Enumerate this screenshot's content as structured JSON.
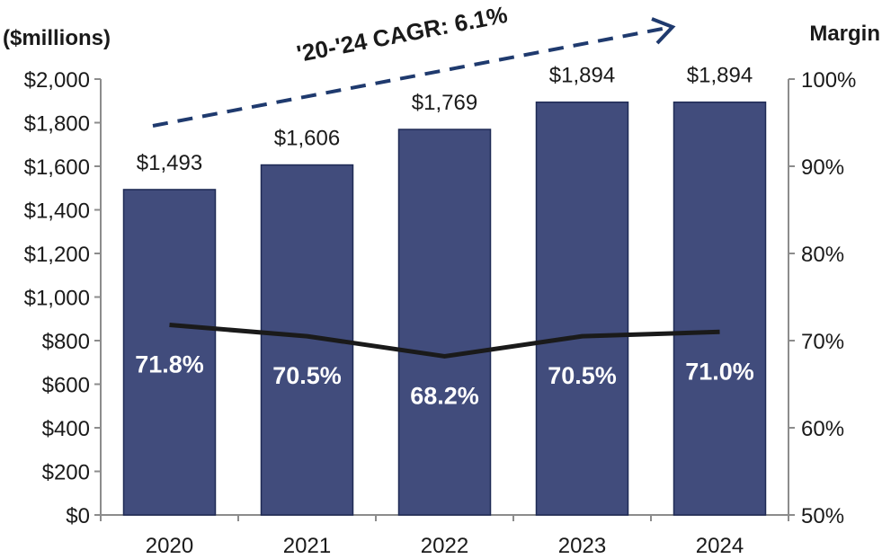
{
  "chart_data": {
    "type": "bar",
    "left_axis_title": "($millions)",
    "right_axis_title": "Margin",
    "annotation": "'20-'24 CAGR: 6.1%",
    "categories": [
      "2020",
      "2021",
      "2022",
      "2023",
      "2024"
    ],
    "series": [
      {
        "type": "bar",
        "axis": "left",
        "values": [
          1493,
          1606,
          1769,
          1894,
          1894
        ],
        "labels": [
          "$1,493",
          "$1,606",
          "$1,769",
          "$1,894",
          "$1,894"
        ],
        "color": "#414c7c"
      },
      {
        "type": "line",
        "axis": "right",
        "values": [
          71.8,
          70.5,
          68.2,
          70.5,
          71.0
        ],
        "labels": [
          "71.8%",
          "70.5%",
          "68.2%",
          "70.5%",
          "71.0%"
        ],
        "color": "#1a1a1a"
      }
    ],
    "left_axis": {
      "ylim": [
        0,
        2000
      ],
      "ticks": [
        0,
        200,
        400,
        600,
        800,
        1000,
        1200,
        1400,
        1600,
        1800,
        2000
      ],
      "tick_labels": [
        "$0",
        "$200",
        "$400",
        "$600",
        "$800",
        "$1,000",
        "$1,200",
        "$1,400",
        "$1,600",
        "$1,800",
        "$2,000"
      ]
    },
    "right_axis": {
      "ylim": [
        50,
        100
      ],
      "ticks": [
        50,
        60,
        70,
        80,
        90,
        100
      ],
      "tick_labels": [
        "50%",
        "60%",
        "70%",
        "80%",
        "90%",
        "100%"
      ]
    },
    "colors": {
      "bar": "#414c7c",
      "bar_edge": "#1f2a55",
      "line": "#1a1a1a",
      "arrow": "#1f3a6e",
      "annotation_text": "#a6a6a6",
      "axis": "#8c8c8c"
    },
    "grid": false
  }
}
